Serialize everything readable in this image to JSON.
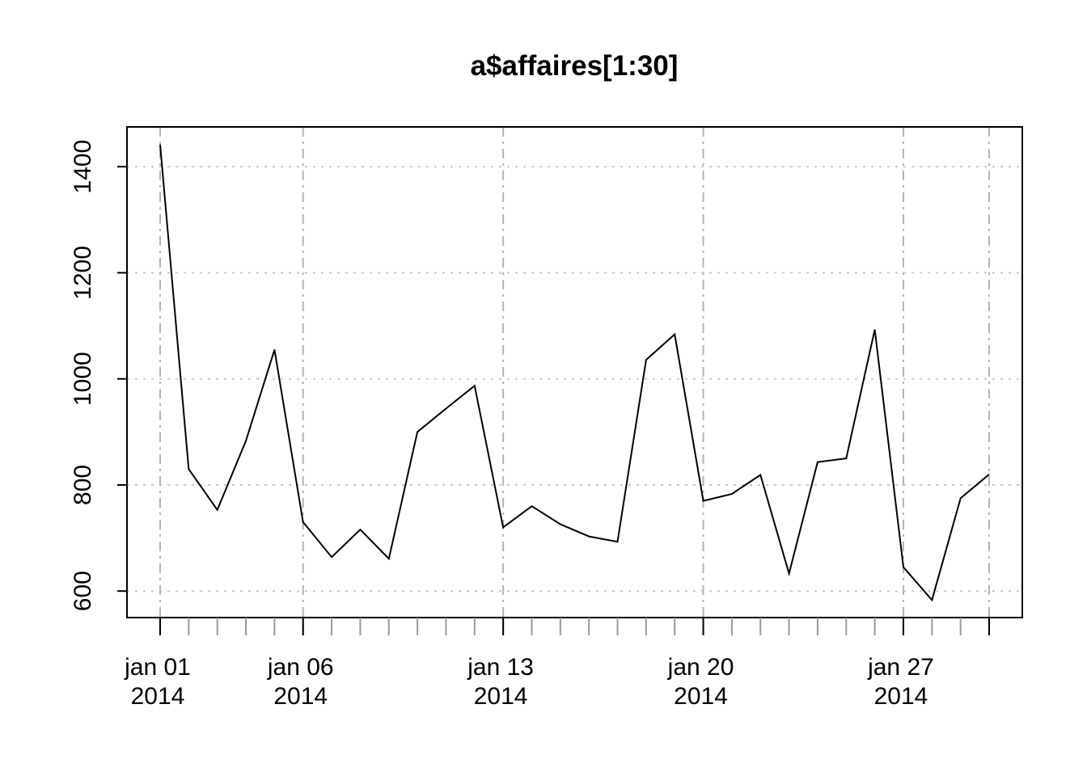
{
  "chart_data": {
    "type": "line",
    "title": "a$affaires[1:30]",
    "xlabel": "",
    "ylabel": "",
    "x": [
      "2014-01-01",
      "2014-01-02",
      "2014-01-03",
      "2014-01-04",
      "2014-01-05",
      "2014-01-06",
      "2014-01-07",
      "2014-01-08",
      "2014-01-09",
      "2014-01-10",
      "2014-01-11",
      "2014-01-12",
      "2014-01-13",
      "2014-01-14",
      "2014-01-15",
      "2014-01-16",
      "2014-01-17",
      "2014-01-18",
      "2014-01-19",
      "2014-01-20",
      "2014-01-21",
      "2014-01-22",
      "2014-01-23",
      "2014-01-24",
      "2014-01-25",
      "2014-01-26",
      "2014-01-27",
      "2014-01-28",
      "2014-01-29",
      "2014-01-30"
    ],
    "series": [
      {
        "values": [
          1442,
          830,
          753,
          883,
          1055,
          730,
          664,
          716,
          661,
          900,
          944,
          987,
          720,
          760,
          726,
          703,
          693,
          1036,
          1084,
          770,
          783,
          819,
          633,
          843,
          850,
          1093,
          645,
          583,
          775,
          820
        ]
      }
    ],
    "xlim": [
      "2014-01-01",
      "2014-01-30"
    ],
    "ylim": [
      550,
      1475
    ],
    "y_ticks": [
      600,
      800,
      1000,
      1200,
      1400
    ],
    "x_major_ticks": [
      {
        "date": "2014-01-01",
        "line1": "jan 01",
        "line2": "2014"
      },
      {
        "date": "2014-01-06",
        "line1": "jan 06",
        "line2": "2014"
      },
      {
        "date": "2014-01-13",
        "line1": "jan 13",
        "line2": "2014"
      },
      {
        "date": "2014-01-20",
        "line1": "jan 20",
        "line2": "2014"
      },
      {
        "date": "2014-01-27",
        "line1": "jan 27",
        "line2": "2014"
      },
      {
        "date": "2014-01-30",
        "line1": "",
        "line2": ""
      }
    ],
    "grid": true,
    "colors": {
      "line": "#000000",
      "grid": "#bebebe"
    }
  }
}
